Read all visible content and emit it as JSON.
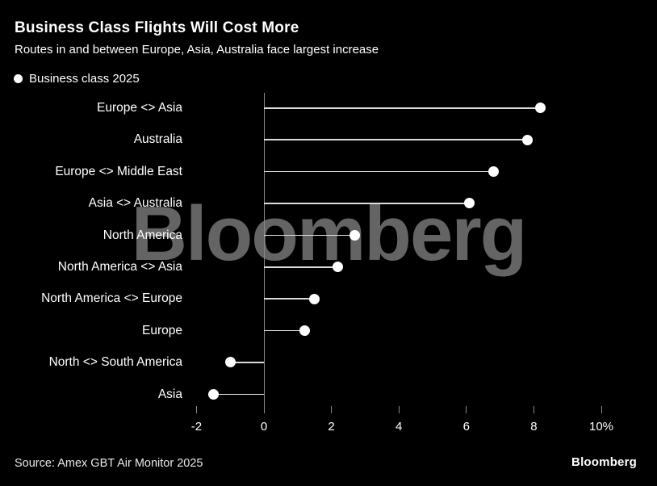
{
  "header": {
    "title": "Business Class Flights Will Cost More",
    "subtitle": "Routes in and between Europe, Asia, Australia face largest increase"
  },
  "legend": {
    "label": "Business class 2025"
  },
  "chart_data": {
    "type": "lollipop-bar",
    "orientation": "horizontal",
    "title": "Business Class Flights Will Cost More",
    "subtitle": "Routes in and between Europe, Asia, Australia face largest increase",
    "series_name": "Business class 2025",
    "categories": [
      "Europe <> Asia",
      "Australia",
      "Europe <> Middle East",
      "Asia <> Australia",
      "North America",
      "North America <> Asia",
      "North America <> Europe",
      "Europe",
      "North <> South America",
      "Asia"
    ],
    "values": [
      8.2,
      7.8,
      6.8,
      6.1,
      2.7,
      2.2,
      1.5,
      1.2,
      -1.0,
      -1.5
    ],
    "unit": "%",
    "xlabel": "",
    "ylabel": "",
    "xlim": [
      -2,
      10
    ],
    "xticks": [
      -2,
      0,
      2,
      4,
      6,
      8,
      10
    ],
    "xtick_labels": [
      "-2",
      "0",
      "2",
      "4",
      "6",
      "8",
      "10%"
    ],
    "grid": false,
    "legend_position": "top-left"
  },
  "watermark": "Bloomberg",
  "footer": {
    "source": "Source: Amex GBT Air Monitor 2025",
    "logo": "Bloomberg"
  },
  "colors": {
    "background": "#000000",
    "text": "#ffffff",
    "dot": "#ffffff",
    "stem": "#dcdcdc",
    "axis": "#8a8a8a",
    "watermark": "#646464"
  }
}
